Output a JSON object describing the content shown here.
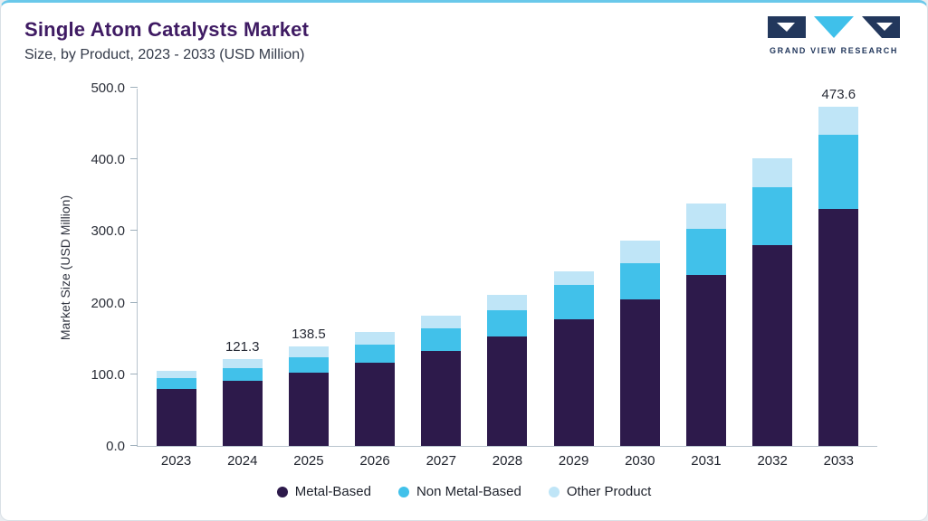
{
  "header": {
    "title": "Single Atom Catalysts Market",
    "subtitle": "Size, by Product, 2023 - 2033 (USD Million)",
    "logo_text": "GRAND VIEW RESEARCH"
  },
  "chart_data": {
    "type": "bar",
    "stacked": true,
    "title": "Single Atom Catalysts Market Size, by Product, 2023 - 2033 (USD Million)",
    "xlabel": "",
    "ylabel": "Market Size (USD Million)",
    "ylim": [
      0,
      500
    ],
    "ytick_labels": [
      "0.0",
      "100.0",
      "200.0",
      "300.0",
      "400.0",
      "500.0"
    ],
    "grid": false,
    "legend_position": "bottom",
    "categories": [
      "2023",
      "2024",
      "2025",
      "2026",
      "2027",
      "2028",
      "2029",
      "2030",
      "2031",
      "2032",
      "2033"
    ],
    "series": [
      {
        "name": "Metal-Based",
        "color": "#2d1a4b",
        "values": [
          79.2,
          90.5,
          102.0,
          115.9,
          132.9,
          152.4,
          176.3,
          204.1,
          239.3,
          280.9,
          331.2
        ]
      },
      {
        "name": "Non Metal-Based",
        "color": "#41c1ea",
        "values": [
          15.3,
          18.5,
          22.0,
          25.2,
          31.5,
          37.0,
          48.5,
          51.7,
          64.2,
          80.6,
          103.3
        ]
      },
      {
        "name": "Other Product",
        "color": "#bfe5f7",
        "values": [
          10.0,
          12.3,
          14.5,
          17.6,
          17.0,
          20.9,
          19.5,
          31.4,
          35.3,
          40.3,
          39.1
        ]
      }
    ],
    "totals": [
      104.5,
      121.3,
      138.5,
      158.7,
      181.4,
      210.3,
      244.3,
      287.2,
      338.8,
      401.8,
      473.6
    ],
    "bar_total_labels": [
      "",
      "121.3",
      "138.5",
      "",
      "",
      "",
      "",
      "",
      "",
      "",
      "473.6"
    ]
  },
  "colors": {
    "accent_top_line": "#69c8ea",
    "title": "#3f1b63",
    "axis": "#b9c4cd",
    "logo_navy": "#22375c",
    "logo_cyan": "#3fc0ea"
  }
}
